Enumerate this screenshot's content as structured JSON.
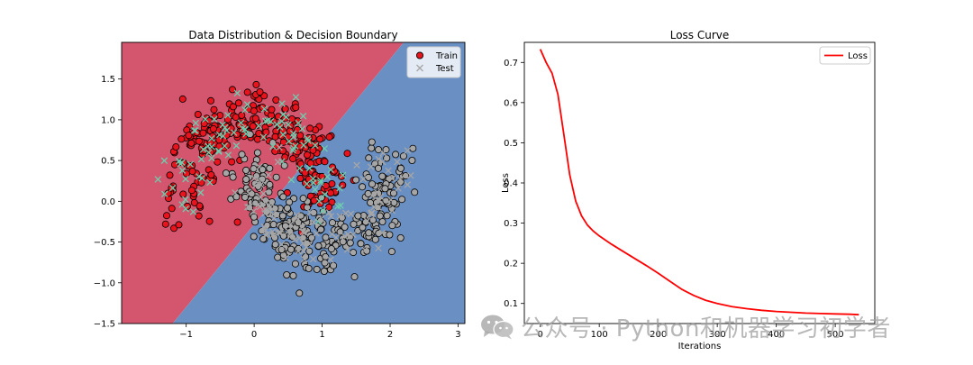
{
  "colors": {
    "region_top": "#d4566e",
    "region_bottom": "#6a8fc2",
    "train_class1": "#e8131c",
    "train_class0": "#a6a6a6",
    "test_class1": "#6ccfae",
    "test_class0": "#a6a6a6",
    "loss_line": "#ff0000"
  },
  "watermark": {
    "text": "公众号 · Python和机器学习初学者",
    "icon": "wechat-icon"
  },
  "chart_data": [
    {
      "type": "scatter",
      "title": "Data Distribution & Decision Boundary",
      "xlabel": "",
      "ylabel": "",
      "xlim": [
        -1.95,
        3.1
      ],
      "ylim": [
        -1.5,
        1.95
      ],
      "xticks": [
        -1,
        0,
        1,
        2,
        3
      ],
      "yticks": [
        -1.5,
        -1.0,
        -0.5,
        0.0,
        0.5,
        1.0,
        1.5
      ],
      "decision_boundary": [
        [
          -1.2,
          -1.5
        ],
        [
          2.2,
          1.95
        ]
      ],
      "legend_position": "top-right",
      "series": [
        {
          "name": "Train",
          "marker": "circle",
          "dataset": "two-moons",
          "noise": 0.2,
          "points_per_class": 300
        },
        {
          "name": "Test",
          "marker": "x",
          "dataset": "two-moons",
          "noise": 0.2,
          "points_per_class": 100
        }
      ]
    },
    {
      "type": "line",
      "title": "Loss Curve",
      "xlabel": "Iterations",
      "ylabel": "Loss",
      "xlim": [
        -27,
        567
      ],
      "ylim": [
        0.05,
        0.75
      ],
      "xticks": [
        0,
        100,
        200,
        300,
        400,
        500
      ],
      "yticks": [
        0.1,
        0.2,
        0.3,
        0.4,
        0.5,
        0.6,
        0.7
      ],
      "legend_position": "top-right",
      "series": [
        {
          "name": "Loss",
          "x": [
            0,
            10,
            20,
            30,
            40,
            50,
            60,
            70,
            80,
            90,
            100,
            120,
            140,
            160,
            180,
            200,
            220,
            240,
            260,
            280,
            300,
            325,
            350,
            375,
            400,
            425,
            450,
            475,
            500,
            525,
            540
          ],
          "y": [
            0.733,
            0.7,
            0.673,
            0.62,
            0.52,
            0.42,
            0.355,
            0.318,
            0.295,
            0.28,
            0.268,
            0.248,
            0.23,
            0.212,
            0.194,
            0.175,
            0.155,
            0.135,
            0.12,
            0.108,
            0.1,
            0.092,
            0.087,
            0.083,
            0.08,
            0.078,
            0.076,
            0.075,
            0.074,
            0.073,
            0.072
          ]
        }
      ]
    }
  ]
}
